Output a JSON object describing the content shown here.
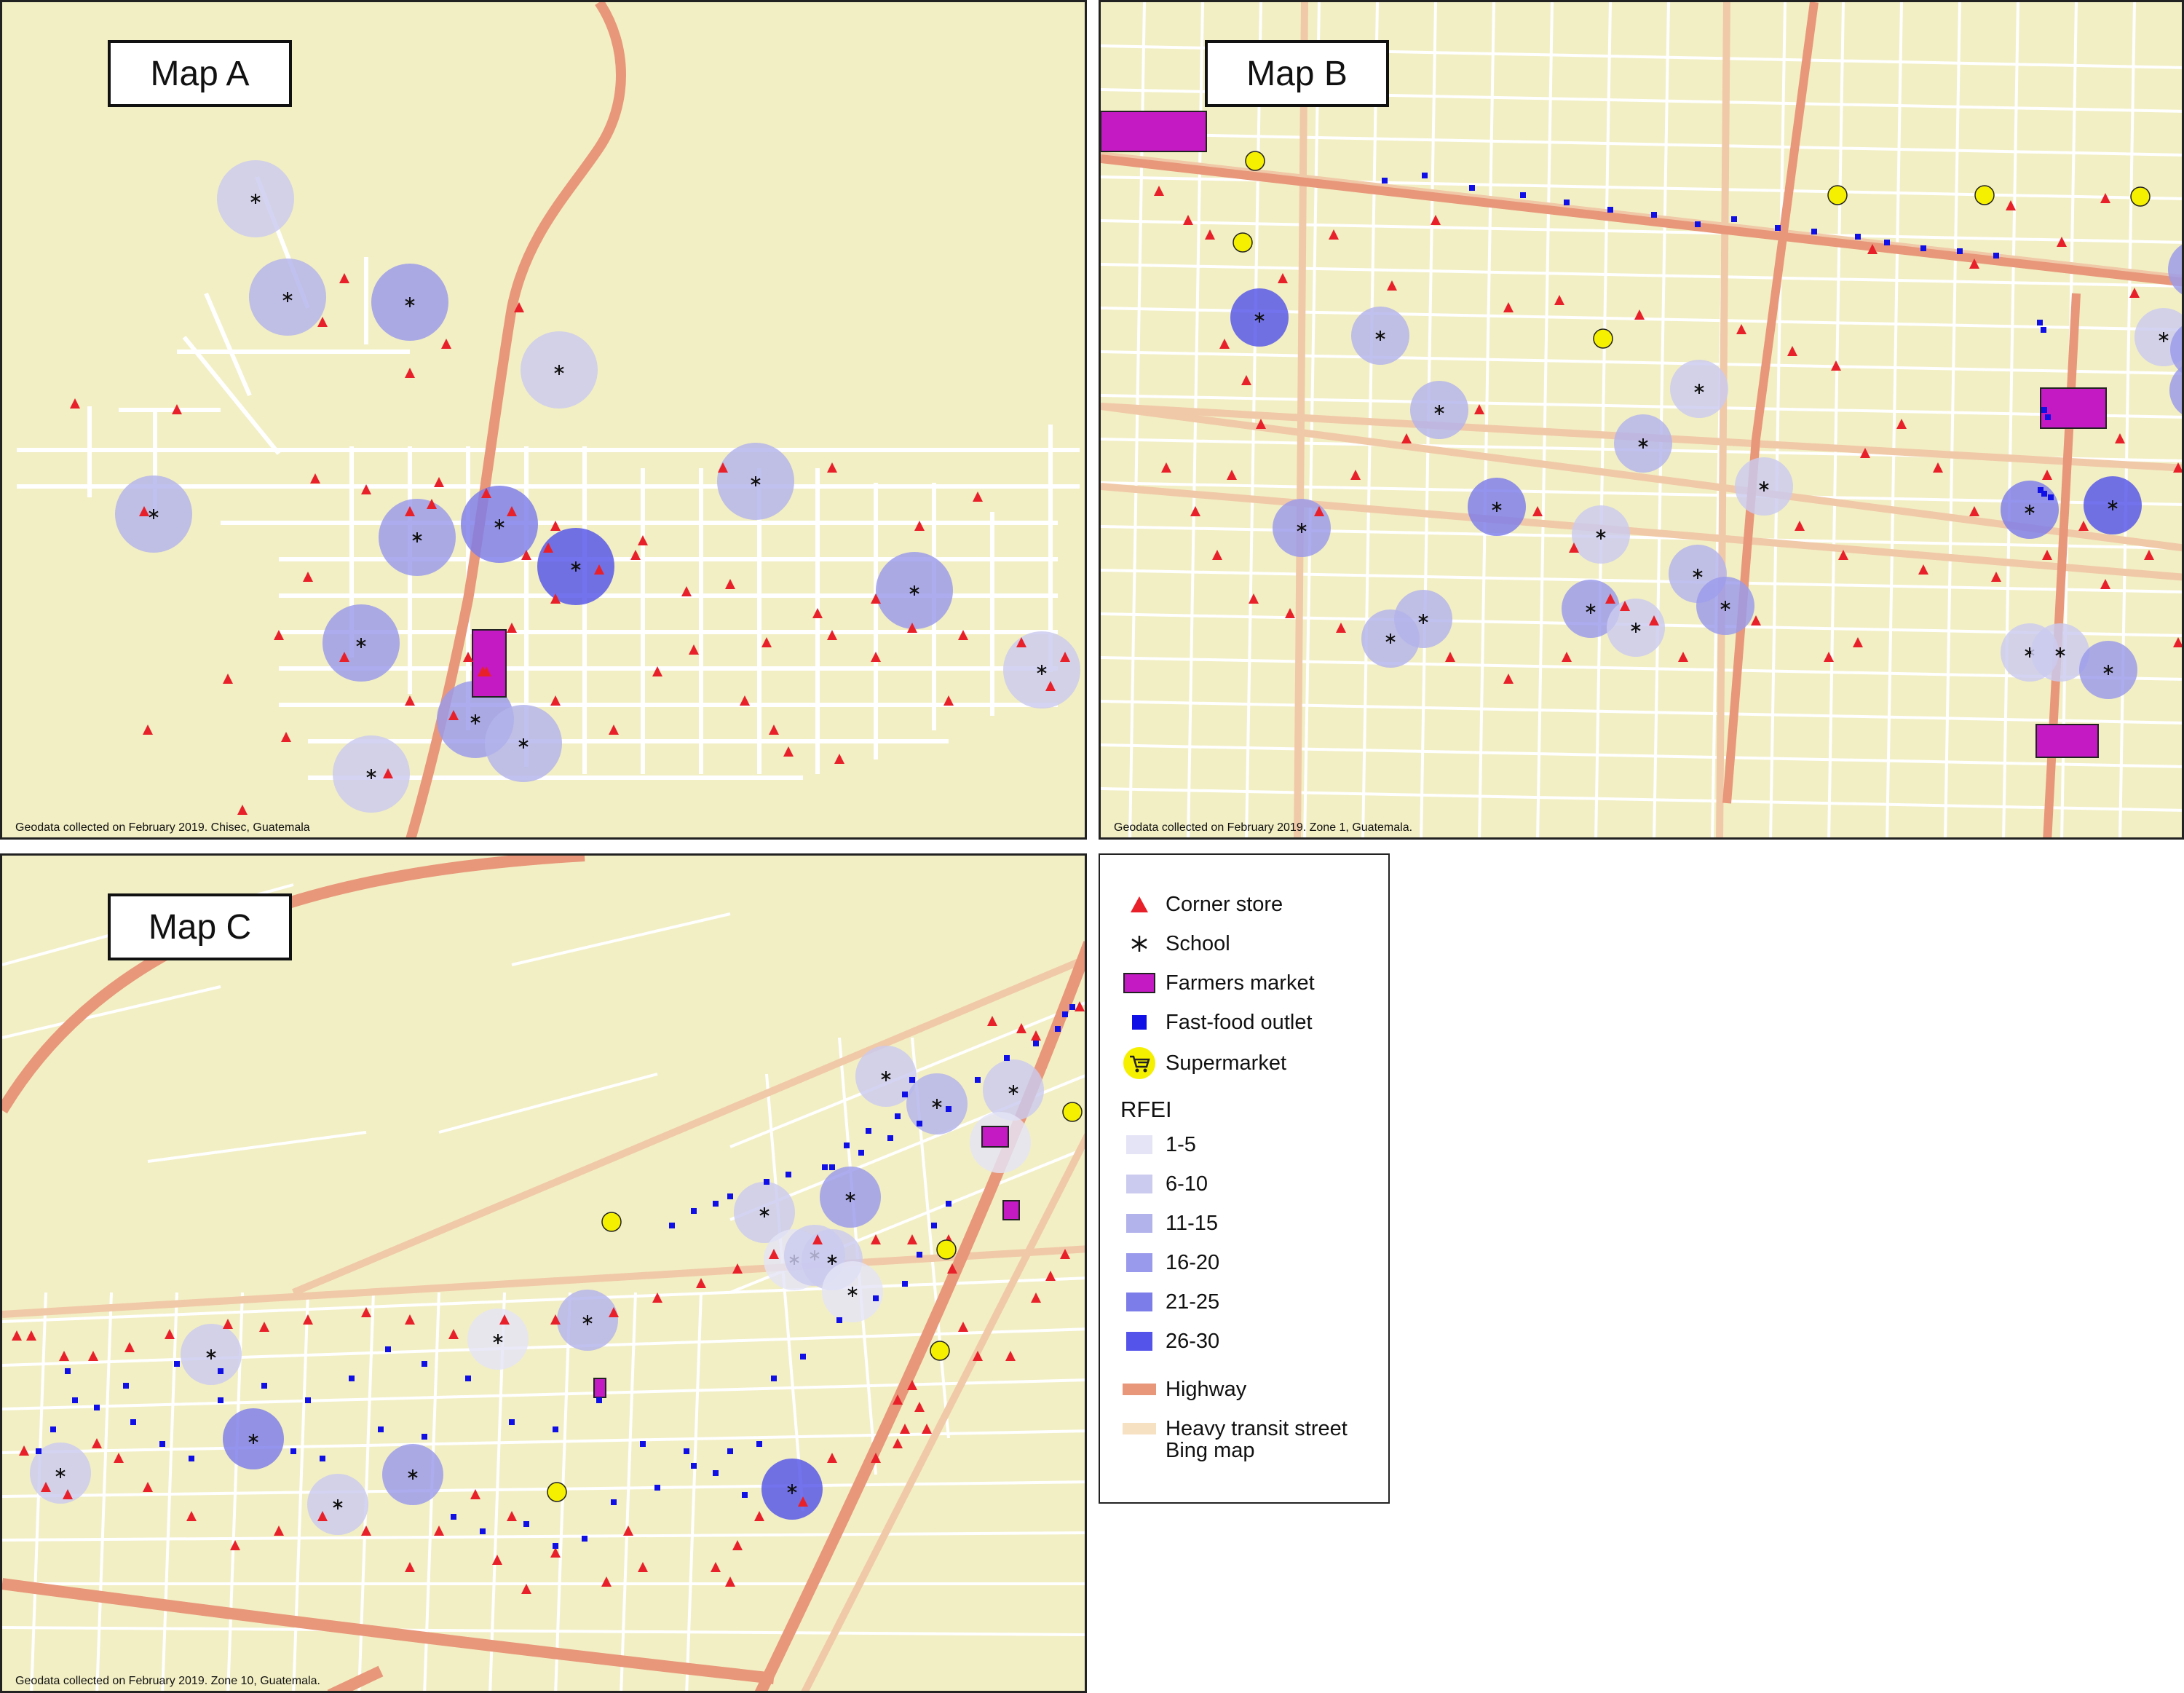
{
  "maps": [
    {
      "id": "A",
      "title": "Map A",
      "caption": "Geodata collected on February 2019. Chisec, Guatemala"
    },
    {
      "id": "B",
      "title": "Map B",
      "caption": "Geodata collected on February 2019. Zone 1, Guatemala."
    },
    {
      "id": "C",
      "title": "Map C",
      "caption": "Geodata collected on February 2019. Zone 10, Guatemala."
    }
  ],
  "legend": {
    "items": [
      {
        "label": "Corner store",
        "icon": "triangle-icon",
        "color": "#e8202a"
      },
      {
        "label": "School",
        "icon": "asterisk-icon",
        "color": "#111111"
      },
      {
        "label": "Farmers market",
        "icon": "rectangle-icon",
        "color": "#c41ac4"
      },
      {
        "label": "Fast-food outlet",
        "icon": "square-icon",
        "color": "#1010e6"
      },
      {
        "label": "Supermarket",
        "icon": "shopping-cart-icon",
        "color": "#f5ef00"
      }
    ],
    "rfei_title": "RFEI",
    "rfei": [
      {
        "label": "1-5",
        "color": "#e4e4f6"
      },
      {
        "label": "6-10",
        "color": "#cbcbef"
      },
      {
        "label": "11-15",
        "color": "#b3b3ec"
      },
      {
        "label": "16-20",
        "color": "#9a9aec"
      },
      {
        "label": "21-25",
        "color": "#7d7dea"
      },
      {
        "label": "26-30",
        "color": "#5454ea"
      }
    ],
    "roads": [
      {
        "label": "Highway",
        "color": "#e8977a"
      },
      {
        "label": "Heavy transit street",
        "color": "#f6e1c3"
      }
    ],
    "basemap_label": "Bing map"
  }
}
